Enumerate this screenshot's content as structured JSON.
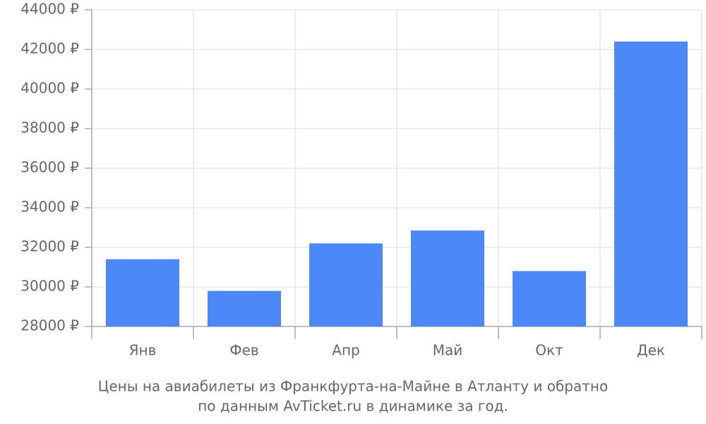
{
  "chart_data": {
    "type": "bar",
    "title": [
      "Цены на авиабилеты из Франкфурта-на-Майне в Атланту и обратно",
      "по данным AvTicket.ru в динамике за год."
    ],
    "categories": [
      "Янв",
      "Фев",
      "Апр",
      "Май",
      "Окт",
      "Дек"
    ],
    "values": [
      31400,
      29800,
      32200,
      32850,
      30800,
      42400
    ],
    "color": "#4d88f9",
    "ylim": [
      28000,
      44000
    ],
    "yticks": [
      {
        "value": 28000,
        "label": "28000 ₽"
      },
      {
        "value": 30000,
        "label": "30000 ₽"
      },
      {
        "value": 32000,
        "label": "32000 ₽"
      },
      {
        "value": 34000,
        "label": "34000 ₽"
      },
      {
        "value": 36000,
        "label": "36000 ₽"
      },
      {
        "value": 38000,
        "label": "38000 ₽"
      },
      {
        "value": 40000,
        "label": "40000 ₽"
      },
      {
        "value": 42000,
        "label": "42000 ₽"
      },
      {
        "value": 44000,
        "label": "44000 ₽"
      }
    ],
    "grid": true
  }
}
